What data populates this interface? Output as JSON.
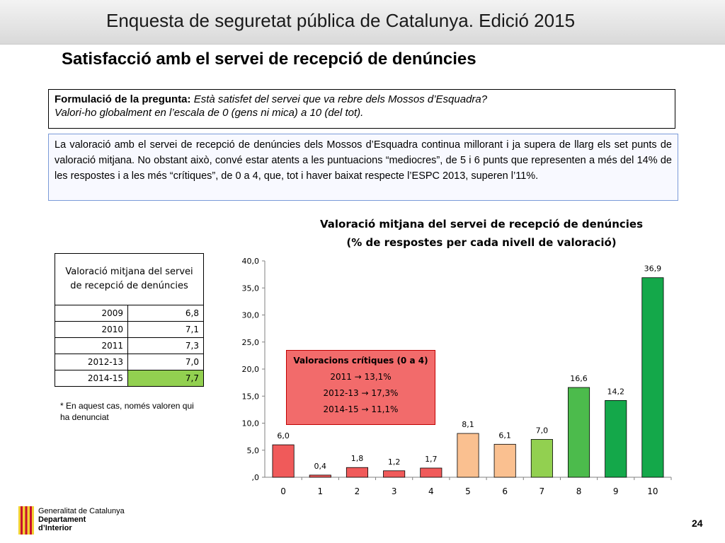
{
  "header": {
    "title": "Enquesta de seguretat pública de Catalunya. Edició 2015"
  },
  "subtitle": "Satisfacció amb el servei de recepció de denúncies",
  "question": {
    "label": "Formulació de la pregunta:",
    "text1": "Està satisfet del servei que va rebre dels Mossos d’Esquadra?",
    "text2": "Valori-ho globalment en l’escala de 0 (gens ni mica) a 10 (del tot)."
  },
  "summary": "La valoració amb el servei de recepció de denúncies dels Mossos d’Esquadra continua millorant i ja supera de llarg els set punts de valoració mitjana. No obstant això, convé estar atents a les puntuacions “mediocres”, de 5 i 6 punts que representen a més del 14% de les respostes i a les més “crítiques”, de 0 a 4, que, tot i haver baixat respecte l’ESPC 2013, superen l’11%.",
  "table": {
    "header": "Valoració mitjana del servei de recepció de denúncies",
    "rows": [
      {
        "year": "2009",
        "value": "6,8"
      },
      {
        "year": "2010",
        "value": "7,1"
      },
      {
        "year": "2011",
        "value": "7,3"
      },
      {
        "year": "2012-13",
        "value": "7,0"
      },
      {
        "year": "2014-15",
        "value": "7,7"
      }
    ]
  },
  "footnote": "* En aquest cas, només valoren qui ha denunciat",
  "chart_data": {
    "type": "bar",
    "title": "Valoració mitjana del servei de recepció de denúncies",
    "subtitle": "(% de respostes per cada nivell de valoració)",
    "categories": [
      "0",
      "1",
      "2",
      "3",
      "4",
      "5",
      "6",
      "7",
      "8",
      "9",
      "10"
    ],
    "values": [
      6.0,
      0.4,
      1.8,
      1.2,
      1.7,
      8.1,
      6.1,
      7.0,
      16.6,
      14.2,
      36.9
    ],
    "value_labels": [
      "6,0",
      "0,4",
      "1,8",
      "1,2",
      "1,7",
      "8,1",
      "6,1",
      "7,0",
      "16,6",
      "14,2",
      "36,9"
    ],
    "bar_colors": [
      "#f05a5a",
      "#f05a5a",
      "#f05a5a",
      "#f05a5a",
      "#f05a5a",
      "#fac090",
      "#fac090",
      "#92d050",
      "#4cbb4c",
      "#14a84a",
      "#14a84a"
    ],
    "ylim": [
      0,
      40
    ],
    "yticks": [
      0,
      5,
      10,
      15,
      20,
      25,
      30,
      35,
      40
    ],
    "ytick_labels": [
      ",0",
      "5,0",
      "10,0",
      "15,0",
      "20,0",
      "25,0",
      "30,0",
      "35,0",
      "40,0"
    ],
    "grid": false,
    "annotation": {
      "title": "Valoracions crítiques (0 a 4)",
      "lines": [
        "2011 → 13,1%",
        "2012-13 → 17,3%",
        "2014-15 → 11,1%"
      ],
      "color": "#f26b6b"
    }
  },
  "logo": {
    "line1": "Generalitat de Catalunya",
    "line2": "Departament",
    "line3": "d’Interior"
  },
  "page_number": "24"
}
